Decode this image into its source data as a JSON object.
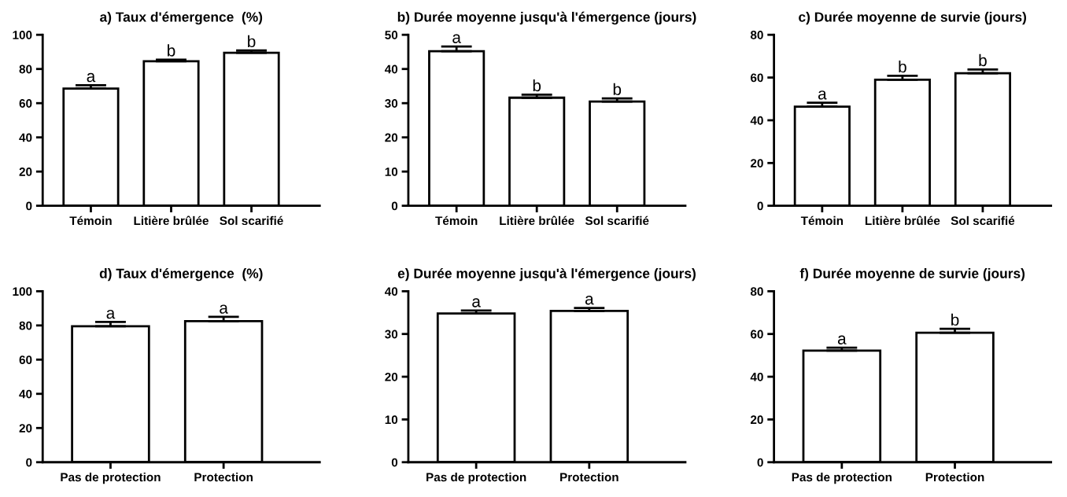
{
  "chart_data": [
    {
      "type": "bar",
      "title": "a) Taux d'émergence  (%)",
      "categories": [
        "Témoin",
        "Litière brûlée",
        "Sol scarifié"
      ],
      "values": [
        68.5,
        84.5,
        89.5
      ],
      "errors": [
        [
          68.5,
          70.5
        ],
        [
          84.5,
          85.5
        ],
        [
          89.5,
          90.8
        ]
      ],
      "color": "#ffffff",
      "ylim": [
        0,
        100
      ],
      "yticks": [
        0,
        20,
        40,
        60,
        80,
        100
      ],
      "annotations": [
        {
          "text": "a",
          "x": "Témoin",
          "y": 68.5
        },
        {
          "text": "b",
          "x": "Litière brûlée",
          "y": 84.5
        },
        {
          "text": "b",
          "x": "Sol scarifié",
          "y": 89.5
        }
      ]
    },
    {
      "type": "bar",
      "title": "b) Durée moyenne jusqu'à l'émergence (jours)",
      "categories": [
        "Témoin",
        "Litière brûlée",
        "Sol scarifié"
      ],
      "values": [
        45.2,
        31.6,
        30.5
      ],
      "errors": [
        [
          45.2,
          46.6
        ],
        [
          31.6,
          32.5
        ],
        [
          30.5,
          31.4
        ]
      ],
      "color": "#ffffff",
      "ylim": [
        0,
        50
      ],
      "yticks": [
        0,
        10,
        20,
        30,
        40,
        50
      ],
      "annotations": [
        {
          "text": "a",
          "x": "Témoin",
          "y": 45.2
        },
        {
          "text": "b",
          "x": "Litière brûlée",
          "y": 31.6
        },
        {
          "text": "b",
          "x": "Sol scarifié",
          "y": 30.5
        }
      ]
    },
    {
      "type": "bar",
      "title": "c) Durée moyenne de survie (jours)",
      "categories": [
        "Témoin",
        "Litière brûlée",
        "Sol scarifié"
      ],
      "values": [
        46.4,
        59,
        62
      ],
      "errors": [
        [
          46.4,
          48.2
        ],
        [
          59,
          60.8
        ],
        [
          62,
          63.8
        ]
      ],
      "color": "#ffffff",
      "ylim": [
        0,
        80
      ],
      "yticks": [
        0,
        20,
        40,
        60,
        80
      ],
      "annotations": [
        {
          "text": "a",
          "x": "Témoin",
          "y": 46.4
        },
        {
          "text": "b",
          "x": "Litière brûlée",
          "y": 59
        },
        {
          "text": "b",
          "x": "Sol scarifié",
          "y": 62
        }
      ]
    },
    {
      "type": "bar",
      "title": "d) Taux d'émergence  (%)",
      "categories": [
        "Pas de protection",
        "Protection"
      ],
      "values": [
        79.5,
        82.5
      ],
      "errors": [
        [
          79.5,
          82
        ],
        [
          82.5,
          85
        ]
      ],
      "color": "#ffffff",
      "ylim": [
        0,
        100
      ],
      "yticks": [
        0,
        20,
        40,
        60,
        80,
        100
      ],
      "annotations": [
        {
          "text": "a",
          "x": "Pas de protection",
          "y": 79.5
        },
        {
          "text": "a",
          "x": "Protection",
          "y": 82.5
        }
      ]
    },
    {
      "type": "bar",
      "title": "e) Durée moyenne jusqu'à l'émergence (jours)",
      "categories": [
        "Pas de protection",
        "Protection"
      ],
      "values": [
        34.8,
        35.4
      ],
      "errors": [
        [
          34.8,
          35.5
        ],
        [
          35.4,
          36.1
        ]
      ],
      "color": "#ffffff",
      "ylim": [
        0,
        40
      ],
      "yticks": [
        0,
        10,
        20,
        30,
        40
      ],
      "annotations": [
        {
          "text": "a",
          "x": "Pas de protection",
          "y": 34.8
        },
        {
          "text": "a",
          "x": "Protection",
          "y": 35.4
        }
      ]
    },
    {
      "type": "bar",
      "title": "f) Durée moyenne de survie (jours)",
      "categories": [
        "Pas de protection",
        "Protection"
      ],
      "values": [
        52.2,
        60.6
      ],
      "errors": [
        [
          52.2,
          53.6
        ],
        [
          60.6,
          62.4
        ]
      ],
      "color": "#ffffff",
      "ylim": [
        0,
        80
      ],
      "yticks": [
        0,
        20,
        40,
        60,
        80
      ],
      "annotations": [
        {
          "text": "a",
          "x": "Pas de protection",
          "y": 52.2
        },
        {
          "text": "b",
          "x": "Protection",
          "y": 60.6
        }
      ]
    }
  ]
}
